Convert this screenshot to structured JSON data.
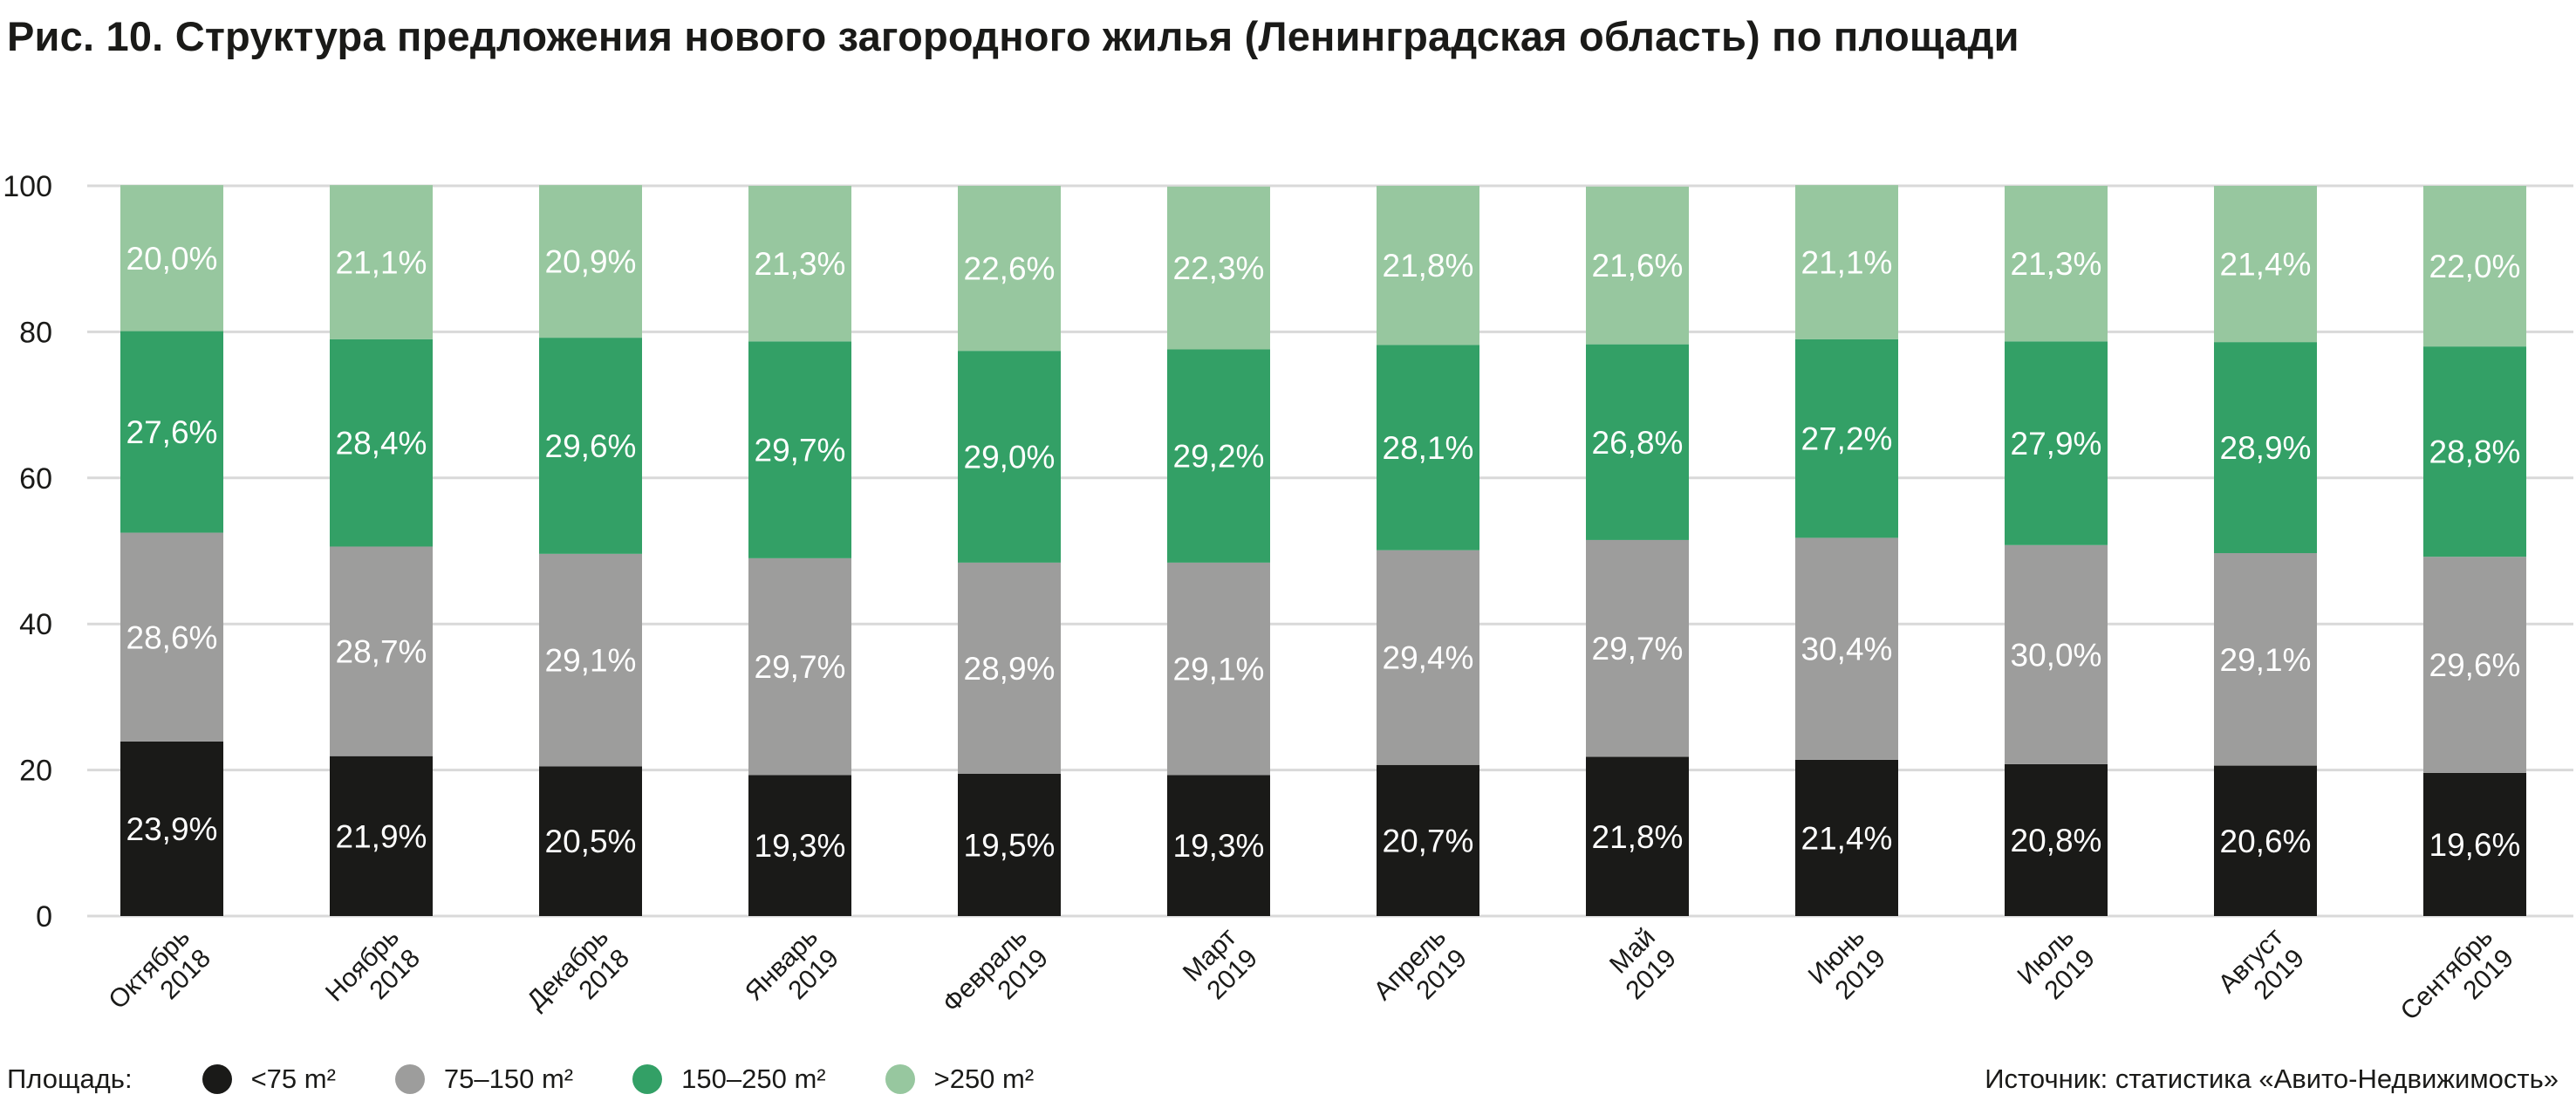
{
  "chart_data": {
    "type": "bar",
    "stacked": true,
    "title": "Рис. 10. Структура предложения нового загородного жилья (Ленинградская область) по площади",
    "categories": [
      [
        "Октябрь",
        "2018"
      ],
      [
        "Ноябрь",
        "2018"
      ],
      [
        "Декабрь",
        "2018"
      ],
      [
        "Январь",
        "2019"
      ],
      [
        "Февраль",
        "2019"
      ],
      [
        "Март",
        "2019"
      ],
      [
        "Апрель",
        "2019"
      ],
      [
        "Май",
        "2019"
      ],
      [
        "Июнь",
        "2019"
      ],
      [
        "Июль",
        "2019"
      ],
      [
        "Август",
        "2019"
      ],
      [
        "Сентябрь",
        "2019"
      ]
    ],
    "series": [
      {
        "name": "<75 m²",
        "color": "#1a1a18",
        "values": [
          23.9,
          21.9,
          20.5,
          19.3,
          19.5,
          19.3,
          20.7,
          21.8,
          21.4,
          20.8,
          20.6,
          19.6
        ],
        "labels": [
          "23,9%",
          "21,9%",
          "20,5%",
          "19,3%",
          "19,5%",
          "19,3%",
          "20,7%",
          "21,8%",
          "21,4%",
          "20,8%",
          "20,6%",
          "19,6%"
        ]
      },
      {
        "name": "75–150 m²",
        "color": "#9d9d9c",
        "values": [
          28.6,
          28.7,
          29.1,
          29.7,
          28.9,
          29.1,
          29.4,
          29.7,
          30.4,
          30.0,
          29.1,
          29.6
        ],
        "labels": [
          "28,6%",
          "28,7%",
          "29,1%",
          "29,7%",
          "28,9%",
          "29,1%",
          "29,4%",
          "29,7%",
          "30,4%",
          "30,0%",
          "29,1%",
          "29,6%"
        ]
      },
      {
        "name": "150–250 m²",
        "color": "#33a066",
        "values": [
          27.6,
          28.4,
          29.6,
          29.7,
          29.0,
          29.2,
          28.1,
          26.8,
          27.2,
          27.9,
          28.9,
          28.8
        ],
        "labels": [
          "27,6%",
          "28,4%",
          "29,6%",
          "29,7%",
          "29,0%",
          "29,2%",
          "28,1%",
          "26,8%",
          "27,2%",
          "27,9%",
          "28,9%",
          "28,8%"
        ]
      },
      {
        "name": ">250 m²",
        "color": "#97c79f",
        "values": [
          20.0,
          21.1,
          20.9,
          21.3,
          22.6,
          22.3,
          21.8,
          21.6,
          21.1,
          21.3,
          21.4,
          22.0
        ],
        "labels": [
          "20,0%",
          "21,1%",
          "20,9%",
          "21,3%",
          "22,6%",
          "22,3%",
          "21,8%",
          "21,6%",
          "21,1%",
          "21,3%",
          "21,4%",
          "22,0%"
        ]
      }
    ],
    "yticks": [
      "0",
      "20",
      "40",
      "60",
      "80",
      "100"
    ],
    "ylim": [
      0,
      100
    ],
    "grid": true,
    "legend": {
      "title": "Площадь:",
      "placement": "bottom-left"
    }
  },
  "source": "Источник: статистика «Авито-Недвижимость»"
}
